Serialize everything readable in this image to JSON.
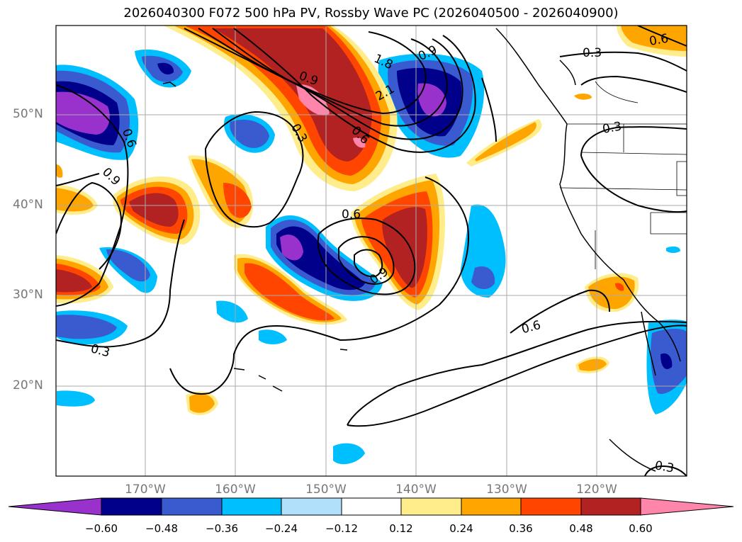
{
  "title": "2026040300 F072 500 hPa PV, Rossby Wave PC (2026040500 - 2026040900)",
  "map": {
    "lat_labels": [
      "50°N",
      "40°N",
      "30°N",
      "20°N"
    ],
    "lon_labels": [
      "170°W",
      "160°W",
      "150°W",
      "140°W",
      "130°W",
      "120°W"
    ],
    "contour_labels": [
      "1.8",
      "2.1",
      "0.9",
      "0.6",
      "0.3",
      "0.9",
      "0.6",
      "0.9",
      "0.6",
      "0.3",
      "0.3",
      "0.6",
      "0.3",
      "0.6",
      "0.9",
      "0.3"
    ]
  },
  "colorbar": {
    "tick_labels": [
      "−0.60",
      "−0.48",
      "−0.36",
      "−0.24",
      "−0.12",
      "0.12",
      "0.24",
      "0.36",
      "0.48",
      "0.60"
    ],
    "colors": [
      "#9932cc",
      "#00008b",
      "#3a5bd0",
      "#00bfff",
      "#b0e0fa",
      "#ffffff",
      "#ffec8b",
      "#ffa500",
      "#ff4500",
      "#b22222",
      "#ff85aa"
    ]
  }
}
